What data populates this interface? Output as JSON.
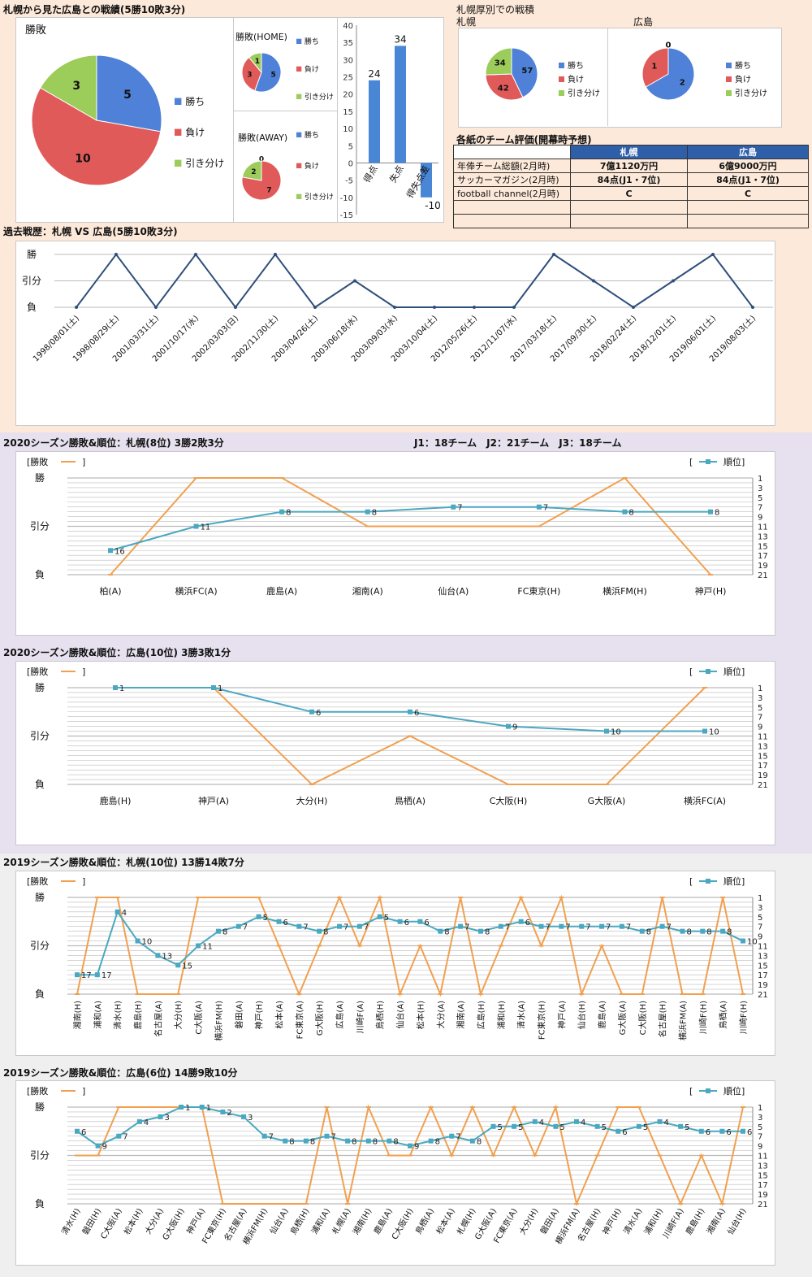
{
  "sections": {
    "record": {
      "title": "札幌から見た広島との戦績(5勝10敗3分)"
    },
    "sapporo_dome": {
      "title": "札幌厚別での戦積",
      "left_label": "札幌",
      "right_label": "広島"
    },
    "evaluation": {
      "title": "各紙のチーム評価(開幕時予想)",
      "header": [
        "",
        "札幌",
        "広島"
      ],
      "rows": [
        [
          "年俸チーム総額(2月時)",
          "7億1120万円",
          "6億9000万円"
        ],
        [
          "サッカーマガジン(2月時)",
          "84点(J1・7位)",
          "84点(J1・7位)"
        ],
        [
          "football channel(2月時)",
          "C",
          "C"
        ],
        [
          "",
          "",
          ""
        ],
        [
          "",
          "",
          ""
        ]
      ]
    },
    "history": {
      "title": "過去戦歴：札幌 VS 広島(5勝10敗3分)"
    },
    "s2020_sapporo": {
      "title": "2020シーズン勝敗&順位：札幌(8位) 3勝2敗3分",
      "note": "J1：18チーム　J2：21チーム　J3：18チーム"
    },
    "s2020_hiroshima": {
      "title": "2020シーズン勝敗&順位：広島(10位) 3勝3敗1分"
    },
    "s2019_sapporo": {
      "title": "2019シーズン勝敗&順位：札幌(10位) 13勝14敗7分"
    },
    "s2019_hiroshima": {
      "title": "2019シーズン勝敗&順位：広島(6位) 14勝9敗10分"
    }
  },
  "legend": {
    "win": "勝ち",
    "lose": "負け",
    "draw": "引き分け",
    "result_label": "[勝敗",
    "rank_label": "順位]",
    "bracket_open": "[",
    "bracket_close": "]"
  },
  "colors": {
    "win": "#4f81d8",
    "lose": "#e05a5a",
    "draw": "#9ccc5a",
    "orange": "#f0a050",
    "teal": "#4aa8c0",
    "navy": "#2f4f7a",
    "bar": "#4a86d6"
  },
  "chart_data": [
    {
      "type": "pie",
      "title": "勝敗",
      "labels": [
        "勝ち",
        "負け",
        "引き分け"
      ],
      "values": [
        5,
        10,
        3
      ]
    },
    {
      "type": "pie",
      "title": "勝敗(HOME)",
      "labels": [
        "勝ち",
        "負け",
        "引き分け"
      ],
      "values": [
        5,
        3,
        1
      ]
    },
    {
      "type": "pie",
      "title": "勝敗(AWAY)",
      "labels": [
        "勝ち",
        "負け",
        "引き分け"
      ],
      "values": [
        0,
        7,
        2
      ]
    },
    {
      "type": "bar",
      "categories": [
        "得点",
        "失点",
        "得失点差"
      ],
      "values": [
        24,
        34,
        -10
      ],
      "ylim": [
        -15,
        40
      ],
      "yticks": [
        40,
        35,
        30,
        25,
        20,
        15,
        10,
        5,
        0,
        -5,
        -10,
        -15
      ]
    },
    {
      "type": "pie",
      "title": "札幌",
      "labels": [
        "勝ち",
        "負け",
        "引き分け"
      ],
      "values": [
        57,
        42,
        34
      ]
    },
    {
      "type": "pie",
      "title": "広島",
      "labels": [
        "勝ち",
        "負け",
        "引き分け"
      ],
      "values": [
        2,
        1,
        0
      ]
    },
    {
      "type": "line",
      "title": "過去戦歴",
      "yticks": [
        "勝",
        "引分",
        "負"
      ],
      "x": [
        "1998/08/01(土)",
        "1998/08/29(土)",
        "2001/03/31(土)",
        "2001/10/17(水)",
        "2002/03/03(日)",
        "2002/11/30(土)",
        "2003/04/26(土)",
        "2003/06/18(水)",
        "2003/09/03(水)",
        "2003/10/04(土)",
        "2012/05/26(土)",
        "2012/11/07(水)",
        "2017/03/18(土)",
        "2017/09/30(土)",
        "2018/02/24(土)",
        "2018/12/01(土)",
        "2019/06/01(土)",
        "2019/08/03(土)"
      ],
      "result": [
        0,
        2,
        0,
        2,
        0,
        2,
        0,
        1,
        0,
        0,
        0,
        0,
        2,
        1,
        0,
        1,
        2,
        0
      ]
    },
    {
      "type": "line",
      "title": "2020 札幌",
      "yticks": [
        "勝",
        "引分",
        "負"
      ],
      "x": [
        "柏(A)",
        "横浜FC(A)",
        "鹿島(A)",
        "湘南(A)",
        "仙台(A)",
        "FC東京(H)",
        "横浜FM(H)",
        "神戸(H)"
      ],
      "result": [
        0,
        2,
        2,
        1,
        1,
        1,
        2,
        0
      ],
      "rank": [
        16,
        11,
        8,
        8,
        7,
        7,
        8,
        8
      ],
      "rank_axis": [
        1,
        3,
        5,
        7,
        9,
        11,
        13,
        15,
        17,
        19,
        21
      ]
    },
    {
      "type": "line",
      "title": "2020 広島",
      "yticks": [
        "勝",
        "引分",
        "負"
      ],
      "x": [
        "鹿島(H)",
        "神戸(A)",
        "大分(H)",
        "鳥栖(A)",
        "C大阪(H)",
        "G大阪(A)",
        "横浜FC(A)"
      ],
      "result": [
        2,
        2,
        0,
        1,
        0,
        0,
        2
      ],
      "rank": [
        1,
        1,
        6,
        6,
        9,
        10,
        10
      ],
      "rank_axis": [
        1,
        3,
        5,
        7,
        9,
        11,
        13,
        15,
        17,
        19,
        21
      ]
    },
    {
      "type": "line",
      "title": "2019 札幌",
      "yticks": [
        "勝",
        "引分",
        "負"
      ],
      "x": [
        "湘南(H)",
        "浦和(A)",
        "清水(H)",
        "鹿島(H)",
        "名古屋(A)",
        "大分(H)",
        "C大阪(A)",
        "横浜FM(H)",
        "磐田(A)",
        "神戸(H)",
        "松本(A)",
        "FC東京(A)",
        "G大阪(H)",
        "広島(A)",
        "川崎F(A)",
        "鳥栖(H)",
        "仙台(A)",
        "松本(H)",
        "大分(A)",
        "湘南(A)",
        "広島(H)",
        "浦和(H)",
        "清水(A)",
        "FC東京(H)",
        "神戸(A)",
        "仙台(H)",
        "鹿島(A)",
        "G大阪(A)",
        "C大阪(H)",
        "名古屋(H)",
        "横浜FM(A)",
        "川崎F(H)",
        "鳥栖(A)",
        "川崎F(H)"
      ],
      "result": [
        0,
        2,
        2,
        0,
        0,
        0,
        2,
        2,
        2,
        2,
        1,
        0,
        1,
        2,
        1,
        2,
        0,
        1,
        0,
        2,
        0,
        1,
        2,
        1,
        2,
        0,
        1,
        0,
        0,
        2,
        0,
        0,
        2,
        0
      ],
      "rank": [
        17,
        17,
        4,
        10,
        13,
        15,
        11,
        8,
        7,
        5,
        6,
        7,
        8,
        7,
        7,
        5,
        6,
        6,
        8,
        7,
        8,
        7,
        6,
        7,
        7,
        7,
        7,
        7,
        8,
        7,
        8,
        8,
        8,
        10
      ],
      "rank_axis": [
        1,
        3,
        5,
        7,
        9,
        11,
        13,
        15,
        17,
        19,
        21
      ]
    },
    {
      "type": "line",
      "title": "2019 広島",
      "yticks": [
        "勝",
        "引分",
        "負"
      ],
      "x": [
        "清水(H)",
        "磐田(H)",
        "C大阪(A)",
        "松本(H)",
        "大分(A)",
        "G大阪(H)",
        "神戸(A)",
        "FC東京(H)",
        "名古屋(A)",
        "横浜FM(H)",
        "仙台(A)",
        "鳥栖(H)",
        "浦和(A)",
        "札幌(A)",
        "湘南(H)",
        "鹿島(A)",
        "C大阪(H)",
        "鳥栖(A)",
        "松本(A)",
        "札幌(H)",
        "G大阪(A)",
        "FC東京(A)",
        "大分(H)",
        "磐田(A)",
        "横浜FM(A)",
        "名古屋(H)",
        "神戸(H)",
        "清水(A)",
        "浦和(H)",
        "川崎F(A)",
        "鹿島(H)",
        "湘南(A)",
        "仙台(H)"
      ],
      "result": [
        1,
        1,
        2,
        2,
        2,
        2,
        2,
        0,
        0,
        0,
        0,
        0,
        2,
        0,
        2,
        1,
        1,
        2,
        1,
        2,
        1,
        2,
        1,
        2,
        0,
        1,
        2,
        2,
        1,
        0,
        1,
        0,
        2
      ],
      "rank": [
        6,
        9,
        7,
        4,
        3,
        1,
        1,
        2,
        3,
        7,
        8,
        8,
        7,
        8,
        8,
        8,
        9,
        8,
        7,
        8,
        5,
        5,
        4,
        5,
        4,
        5,
        6,
        5,
        4,
        5,
        6,
        6,
        6
      ],
      "rank_axis": [
        1,
        3,
        5,
        7,
        9,
        11,
        13,
        15,
        17,
        19,
        21
      ]
    }
  ]
}
